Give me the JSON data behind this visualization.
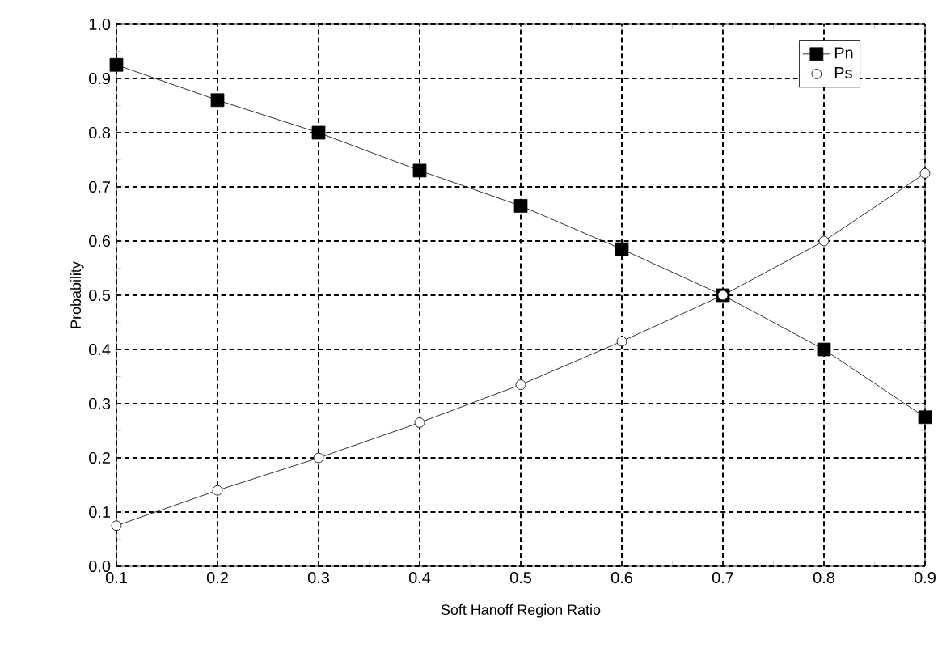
{
  "chart_data": {
    "type": "line",
    "xlabel": "Soft Hanoff Region Ratio",
    "ylabel": "Probability",
    "x": [
      0.1,
      0.2,
      0.3,
      0.4,
      0.5,
      0.6,
      0.7,
      0.8,
      0.9
    ],
    "series": [
      {
        "name": "Pn",
        "color": "#000000",
        "marker": "square",
        "values": [
          0.925,
          0.86,
          0.8,
          0.73,
          0.665,
          0.585,
          0.5,
          0.4,
          0.275
        ]
      },
      {
        "name": "Ps",
        "color": "#000000",
        "marker": "circle",
        "values": [
          0.075,
          0.14,
          0.2,
          0.265,
          0.335,
          0.415,
          0.5,
          0.6,
          0.725
        ]
      }
    ],
    "xlim": [
      0.1,
      0.9
    ],
    "xticks": [
      0.1,
      0.2,
      0.3,
      0.4,
      0.5,
      0.6,
      0.7,
      0.8,
      0.9
    ],
    "ylim": [
      0,
      1
    ],
    "yticks": [
      {
        "value": 0,
        "label": "0.0"
      },
      0.1,
      0.2,
      0.3,
      0.4,
      0.5,
      0.6,
      0.7,
      0.8,
      0.9,
      {
        "value": 1,
        "label": "1.0"
      }
    ],
    "grid": true,
    "legend": "top right",
    "line_style": "solid"
  }
}
